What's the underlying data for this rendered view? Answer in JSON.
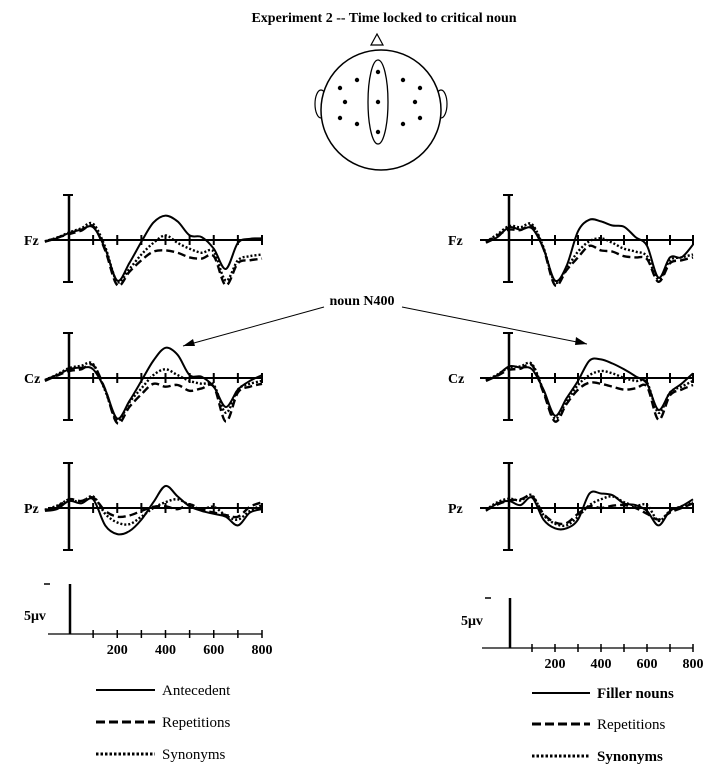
{
  "title": "Experiment 2 -- Time locked to critical noun",
  "annotation": "noun N400",
  "scale_label": "5μv",
  "colors": {
    "ink": "#000000",
    "background": "#ffffff"
  },
  "chart_data": [
    {
      "type": "line",
      "panel": "left",
      "x_axis": {
        "ticks": [
          200,
          400,
          600,
          800
        ],
        "xlim": [
          -100,
          800
        ]
      },
      "legend": {
        "placement": "bottom",
        "entries": [
          "Antecedent",
          "Repetitions",
          "Synonyms"
        ]
      },
      "channels": [
        {
          "name": "Fz",
          "x": [
            -100,
            -50,
            0,
            50,
            100,
            150,
            200,
            250,
            300,
            350,
            400,
            450,
            500,
            550,
            600,
            650,
            700,
            750,
            800
          ],
          "series": [
            {
              "name": "Antecedent",
              "style": "solid",
              "values": [
                -0.3,
                0.3,
                1.2,
                1.8,
                2.2,
                -1.5,
                -7.0,
                -4.0,
                -0.3,
                3.0,
                4.2,
                3.2,
                0.8,
                0.5,
                -1.5,
                -5.0,
                -0.5,
                0.2,
                0.3
              ]
            },
            {
              "name": "Repetitions",
              "style": "dashed",
              "values": [
                -0.3,
                0.4,
                1.0,
                1.6,
                2.4,
                -1.8,
                -7.8,
                -5.5,
                -3.5,
                -2.0,
                -1.8,
                -2.2,
                -3.0,
                -3.2,
                -2.8,
                -7.8,
                -4.0,
                -3.5,
                -3.2
              ]
            },
            {
              "name": "Synonyms",
              "style": "dotted",
              "values": [
                -0.2,
                0.4,
                1.3,
                2.0,
                2.8,
                -1.2,
                -7.2,
                -5.0,
                -2.5,
                -0.5,
                0.8,
                -0.5,
                -1.5,
                -2.2,
                -2.0,
                -7.0,
                -3.5,
                -2.8,
                -2.5
              ]
            }
          ]
        },
        {
          "name": "Cz",
          "x": [
            -100,
            -50,
            0,
            50,
            100,
            150,
            200,
            250,
            300,
            350,
            400,
            450,
            500,
            550,
            600,
            650,
            700,
            750,
            800
          ],
          "series": [
            {
              "name": "Antecedent",
              "style": "solid",
              "values": [
                -0.3,
                0.5,
                1.5,
                1.8,
                1.5,
                -2.0,
                -7.0,
                -4.0,
                -0.5,
                3.0,
                5.2,
                4.0,
                0.5,
                0.2,
                -1.5,
                -5.0,
                -2.0,
                -0.5,
                0.5
              ]
            },
            {
              "name": "Repetitions",
              "style": "dashed",
              "values": [
                -0.5,
                0.4,
                1.2,
                1.5,
                2.2,
                -2.0,
                -7.8,
                -5.0,
                -2.8,
                -1.0,
                -1.5,
                -1.2,
                -2.2,
                -1.8,
                -1.5,
                -7.5,
                -2.5,
                -1.5,
                -1.0
              ]
            },
            {
              "name": "Synonyms",
              "style": "dotted",
              "values": [
                -0.4,
                0.6,
                1.7,
                2.1,
                2.4,
                -2.2,
                -7.3,
                -4.2,
                -1.8,
                0.5,
                1.5,
                0.5,
                -0.5,
                -1.0,
                -1.2,
                -6.0,
                -2.0,
                -1.0,
                -0.5
              ]
            }
          ]
        },
        {
          "name": "Pz",
          "x": [
            -100,
            -50,
            0,
            50,
            100,
            150,
            200,
            250,
            300,
            350,
            400,
            450,
            500,
            550,
            600,
            650,
            700,
            750,
            800
          ],
          "series": [
            {
              "name": "Antecedent",
              "style": "solid",
              "values": [
                -0.5,
                -0.2,
                1.2,
                0.8,
                1.5,
                -3.0,
                -4.5,
                -4.0,
                -2.0,
                1.0,
                3.8,
                2.0,
                0.3,
                -0.5,
                -1.0,
                -1.5,
                -3.0,
                -0.8,
                -0.2
              ]
            },
            {
              "name": "Repetitions",
              "style": "dashed",
              "values": [
                -0.4,
                0.2,
                1.5,
                1.2,
                1.8,
                -0.5,
                -1.5,
                -1.3,
                -0.5,
                0.2,
                0.3,
                -0.2,
                0.6,
                -0.3,
                -0.8,
                -1.2,
                -1.5,
                0.2,
                1.0
              ]
            },
            {
              "name": "Synonyms",
              "style": "dotted",
              "values": [
                -0.3,
                0.4,
                1.4,
                1.0,
                2.0,
                -1.0,
                -2.5,
                -2.8,
                -1.5,
                0.0,
                1.0,
                1.5,
                0.5,
                -0.2,
                0.2,
                -1.3,
                -2.0,
                -0.5,
                0.5
              ]
            }
          ]
        }
      ]
    },
    {
      "type": "line",
      "panel": "right",
      "x_axis": {
        "ticks": [
          200,
          400,
          600,
          800
        ],
        "xlim": [
          -100,
          800
        ]
      },
      "legend": {
        "placement": "bottom",
        "entries": [
          "Filler nouns",
          "Repetitions",
          "Synonyms"
        ]
      },
      "channels": [
        {
          "name": "Fz",
          "x": [
            -100,
            -50,
            0,
            50,
            100,
            150,
            200,
            250,
            300,
            350,
            400,
            450,
            500,
            550,
            600,
            650,
            700,
            750,
            800
          ],
          "series": [
            {
              "name": "Filler nouns",
              "style": "solid",
              "values": [
                -0.5,
                0.5,
                2.2,
                1.8,
                2.0,
                -1.5,
                -7.0,
                -4.5,
                1.5,
                3.5,
                3.2,
                2.5,
                2.3,
                0.5,
                -1.0,
                -6.5,
                -3.0,
                -3.0,
                -0.8
              ]
            },
            {
              "name": "Repetitions",
              "style": "dashed",
              "values": [
                -0.4,
                0.8,
                1.8,
                1.7,
                2.4,
                -1.5,
                -7.8,
                -5.2,
                -3.0,
                -1.0,
                -1.8,
                -2.0,
                -2.8,
                -3.0,
                -3.3,
                -7.2,
                -4.0,
                -3.5,
                -3.0
              ]
            },
            {
              "name": "Synonyms",
              "style": "dotted",
              "values": [
                -0.3,
                1.0,
                2.4,
                2.2,
                2.7,
                -1.3,
                -7.3,
                -4.9,
                -2.0,
                -0.2,
                0.3,
                -0.5,
                -1.5,
                -2.0,
                -2.8,
                -6.8,
                -3.5,
                -3.0,
                -2.5
              ]
            }
          ]
        },
        {
          "name": "Cz",
          "x": [
            -100,
            -50,
            0,
            50,
            100,
            150,
            200,
            250,
            300,
            350,
            400,
            450,
            500,
            550,
            600,
            650,
            700,
            750,
            800
          ],
          "series": [
            {
              "name": "Filler nouns",
              "style": "solid",
              "values": [
                -0.5,
                0.5,
                2.0,
                1.8,
                1.5,
                -2.0,
                -6.5,
                -3.5,
                -0.5,
                3.0,
                3.2,
                2.5,
                1.5,
                0.3,
                -1.0,
                -5.5,
                -2.5,
                -1.0,
                0.8
              ]
            },
            {
              "name": "Repetitions",
              "style": "dashed",
              "values": [
                -0.5,
                0.4,
                1.4,
                1.6,
                2.2,
                -2.5,
                -7.5,
                -4.5,
                -2.0,
                -0.8,
                -1.0,
                -1.5,
                -2.0,
                -1.8,
                -1.5,
                -7.2,
                -3.0,
                -2.0,
                -1.2
              ]
            },
            {
              "name": "Synonyms",
              "style": "dotted",
              "values": [
                -0.4,
                0.6,
                1.8,
                2.0,
                2.4,
                -2.2,
                -7.0,
                -4.0,
                -1.2,
                0.5,
                1.2,
                0.8,
                0.0,
                -0.5,
                -0.8,
                -6.0,
                -2.5,
                -1.5,
                -0.5
              ]
            }
          ]
        },
        {
          "name": "Pz",
          "x": [
            -100,
            -50,
            0,
            50,
            100,
            150,
            200,
            250,
            300,
            350,
            400,
            450,
            500,
            550,
            600,
            650,
            700,
            750,
            800
          ],
          "series": [
            {
              "name": "Filler nouns",
              "style": "solid",
              "values": [
                -0.5,
                0.8,
                1.2,
                0.5,
                1.8,
                -2.0,
                -3.5,
                -3.5,
                -2.0,
                2.5,
                2.5,
                2.2,
                0.8,
                0.5,
                -0.5,
                -3.0,
                -0.5,
                0.3,
                1.5
              ]
            },
            {
              "name": "Repetitions",
              "style": "dashed",
              "values": [
                -0.4,
                0.6,
                1.3,
                1.5,
                2.0,
                -1.0,
                -2.5,
                -2.6,
                -1.0,
                0.3,
                0.0,
                0.4,
                0.5,
                0.0,
                -1.0,
                -2.0,
                -0.8,
                0.0,
                0.8
              ]
            },
            {
              "name": "Synonyms",
              "style": "dotted",
              "values": [
                -0.3,
                1.0,
                1.6,
                1.3,
                2.2,
                -1.2,
                -2.7,
                -3.0,
                -1.5,
                0.5,
                1.5,
                2.0,
                1.0,
                0.4,
                0.5,
                -2.2,
                -0.5,
                0.3,
                1.0
              ]
            }
          ]
        }
      ]
    }
  ]
}
